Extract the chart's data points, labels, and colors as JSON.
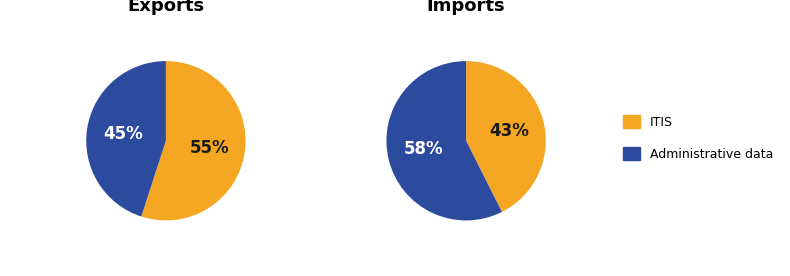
{
  "exports": {
    "title": "Exports",
    "values": [
      55,
      45
    ],
    "label_texts": [
      "55%",
      "45%"
    ],
    "label_colors": [
      "#1a1a1a",
      "#ffffff"
    ],
    "colors": [
      "#F5A623",
      "#2D4B9E"
    ],
    "startangle": 90,
    "counterclock": false
  },
  "imports": {
    "title": "Imports",
    "values": [
      43,
      58
    ],
    "label_texts": [
      "43%",
      "58%"
    ],
    "label_colors": [
      "#1a1a1a",
      "#ffffff"
    ],
    "colors": [
      "#F5A623",
      "#2D4B9E"
    ],
    "startangle": 90,
    "counterclock": false
  },
  "legend_labels": [
    "ITIS",
    "Administrative data"
  ],
  "legend_colors": [
    "#F5A623",
    "#2D4B9E"
  ],
  "title_fontsize": 13,
  "label_fontsize": 12,
  "background_color": "#ffffff"
}
